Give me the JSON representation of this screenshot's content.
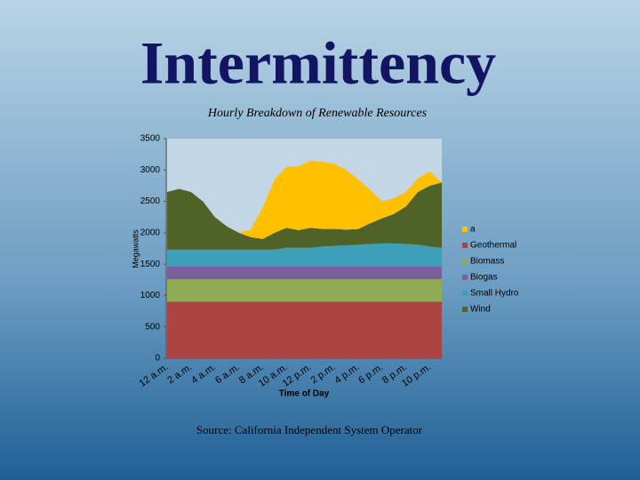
{
  "title": "Intermittency",
  "source": "Source: California Independent System Operator",
  "chart_data": {
    "type": "stacked-area",
    "subtitle": "Hourly Breakdown of Renewable Resources",
    "y_label": "Megawatts",
    "x_label": "Time of Day",
    "categories": [
      "12 a.m.",
      null,
      "2 a.m.",
      null,
      "4 a.m.",
      null,
      "6 a.m.",
      null,
      "8 a.m.",
      null,
      "10 a.m.",
      null,
      "12 p.m.",
      null,
      "2 p.m.",
      null,
      "4 p.m.",
      null,
      "6 p.m.",
      null,
      "8 p.m.",
      null,
      "10 p.m.",
      null
    ],
    "ylim": [
      0,
      3500
    ],
    "yticks": [
      0,
      500,
      1000,
      1500,
      2000,
      2500,
      3000,
      3500
    ],
    "series": [
      {
        "name": "a",
        "color": "#ffc000",
        "values": [
          0,
          0,
          0,
          0,
          0,
          0,
          0,
          120,
          500,
          850,
          970,
          1020,
          1070,
          1070,
          1040,
          950,
          790,
          530,
          270,
          250,
          230,
          220,
          230,
          0
        ]
      },
      {
        "name": "Geothermal",
        "color": "#ab4442",
        "values": [
          900,
          900,
          900,
          900,
          900,
          900,
          900,
          900,
          900,
          900,
          900,
          900,
          900,
          900,
          900,
          900,
          900,
          900,
          900,
          900,
          900,
          900,
          900,
          900
        ]
      },
      {
        "name": "Biomass",
        "color": "#8fac55",
        "values": [
          360,
          360,
          360,
          360,
          360,
          360,
          360,
          360,
          360,
          360,
          360,
          360,
          360,
          360,
          360,
          360,
          360,
          360,
          360,
          360,
          360,
          360,
          360,
          360
        ]
      },
      {
        "name": "Biogas",
        "color": "#7b5f9c",
        "values": [
          200,
          200,
          200,
          200,
          200,
          200,
          200,
          200,
          200,
          200,
          200,
          200,
          200,
          200,
          200,
          200,
          200,
          200,
          200,
          200,
          200,
          200,
          200,
          200
        ]
      },
      {
        "name": "Small Hydro",
        "color": "#3d9fb8",
        "values": [
          270,
          270,
          270,
          270,
          270,
          270,
          270,
          270,
          270,
          270,
          300,
          300,
          300,
          320,
          330,
          340,
          350,
          360,
          370,
          370,
          360,
          350,
          320,
          300
        ]
      },
      {
        "name": "Wind",
        "color": "#4f6228",
        "values": [
          920,
          970,
          920,
          770,
          520,
          370,
          270,
          200,
          170,
          270,
          320,
          280,
          320,
          280,
          270,
          250,
          250,
          330,
          400,
          470,
          600,
          840,
          970,
          1040
        ]
      }
    ]
  }
}
